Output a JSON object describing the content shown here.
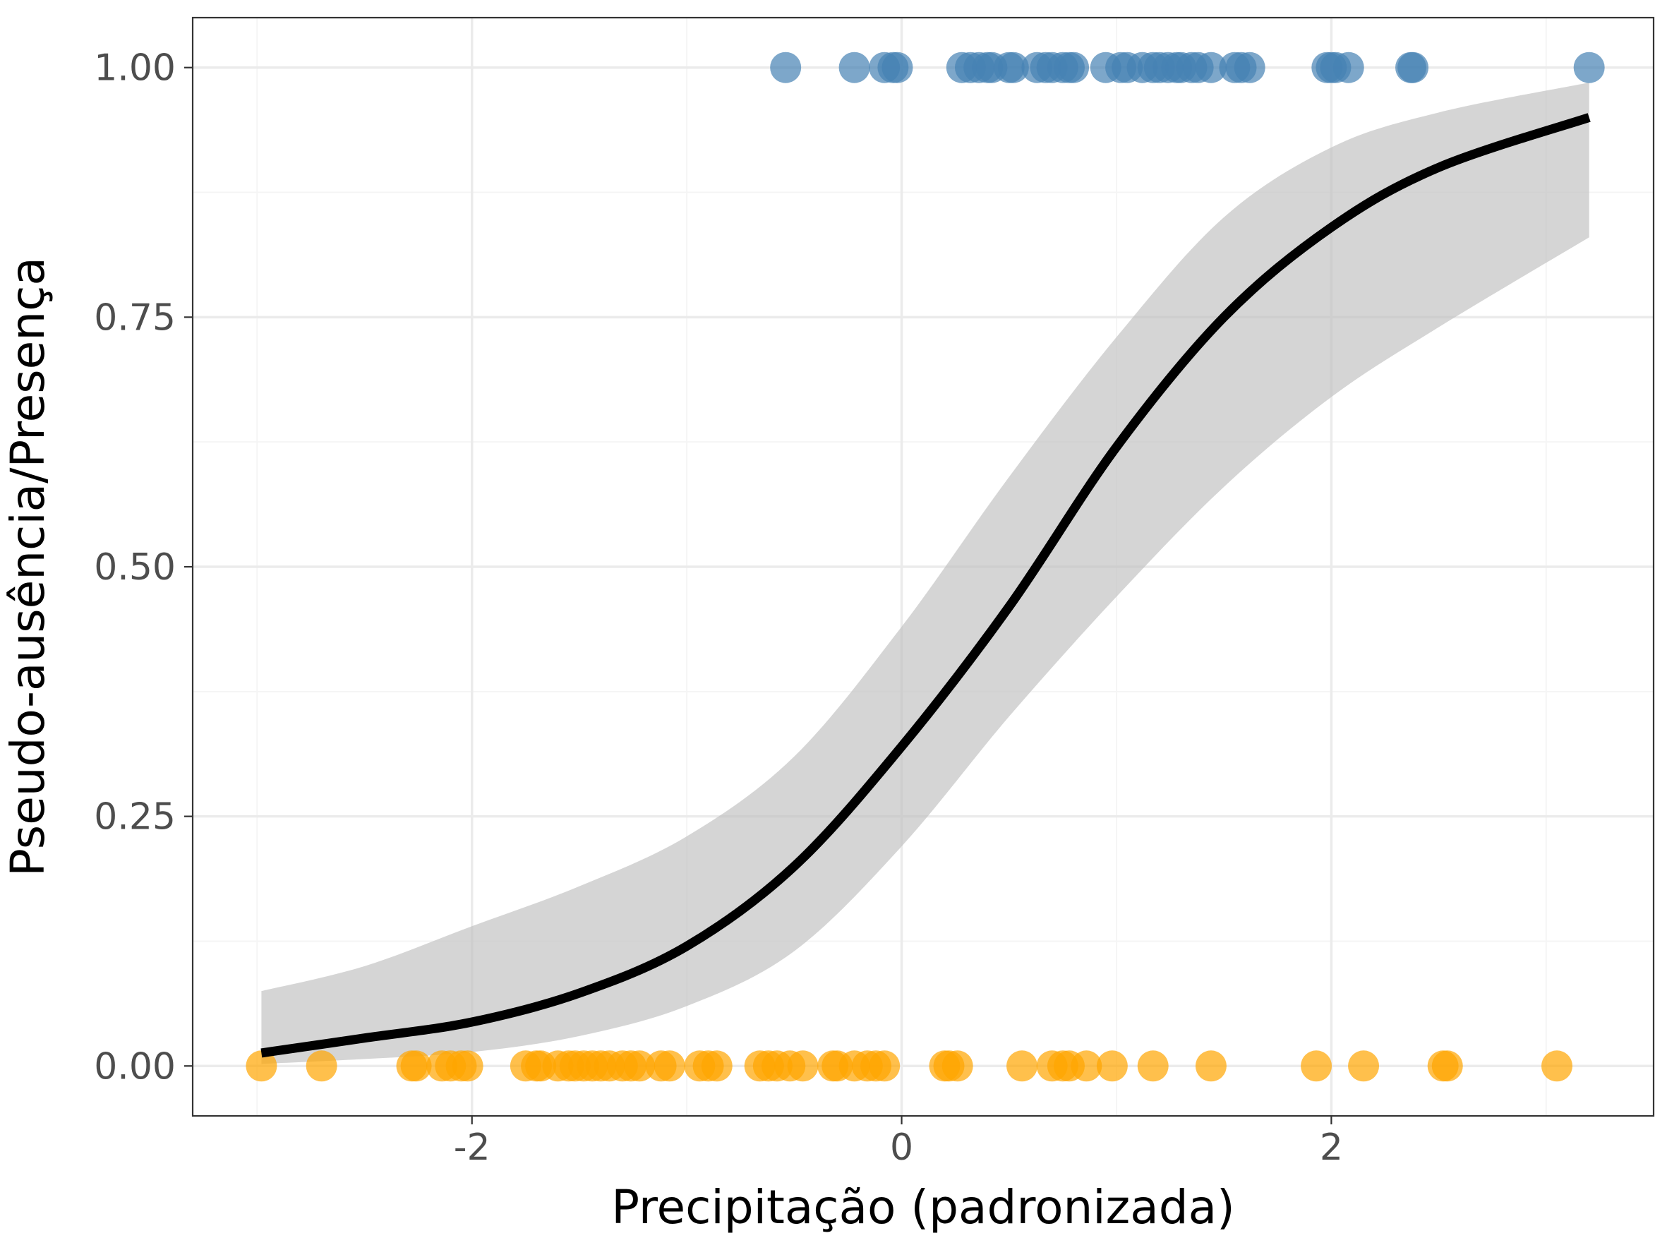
{
  "chart_data": {
    "type": "scatter",
    "xlabel": "Precipitação (padronizada)",
    "ylabel": "Pseudo-ausência/Presença",
    "xlim": [
      -3.3,
      3.5
    ],
    "ylim": [
      -0.05,
      1.05
    ],
    "x_ticks": [
      -2,
      0,
      2
    ],
    "x_tick_labels": [
      "-2",
      "0",
      "2"
    ],
    "y_ticks": [
      0,
      0.25,
      0.5,
      0.75,
      1
    ],
    "y_tick_labels": [
      "0.00",
      "0.25",
      "0.50",
      "0.75",
      "1.00"
    ],
    "grid": true,
    "legend": "none",
    "colors": {
      "presence": "#4682b4",
      "absence": "#ffa500",
      "curve": "#000000",
      "ribbon": "#bebebe",
      "grid_major": "#ebebeb",
      "grid_minor": "#f5f5f5",
      "panel_border": "#333333"
    },
    "series": [
      {
        "kind": "points",
        "y": 1,
        "x": [
          -0.54,
          -0.22,
          -0.08,
          -0.04,
          -0.02,
          0.28,
          0.32,
          0.36,
          0.4,
          0.42,
          0.5,
          0.52,
          0.63,
          0.67,
          0.7,
          0.75,
          0.78,
          0.8,
          0.95,
          1.02,
          1.05,
          1.12,
          1.17,
          1.2,
          1.24,
          1.28,
          1.3,
          1.35,
          1.38,
          1.44,
          1.55,
          1.58,
          1.62,
          1.98,
          2.0,
          2.02,
          2.08,
          2.37,
          2.38,
          3.2
        ]
      },
      {
        "kind": "points",
        "y": 0,
        "x": [
          -2.98,
          -2.7,
          -2.28,
          -2.26,
          -2.14,
          -2.1,
          -2.05,
          -2.02,
          -1.75,
          -1.7,
          -1.68,
          -1.6,
          -1.55,
          -1.52,
          -1.48,
          -1.44,
          -1.4,
          -1.36,
          -1.3,
          -1.26,
          -1.22,
          -1.12,
          -1.08,
          -0.94,
          -0.9,
          -0.86,
          -0.66,
          -0.62,
          -0.58,
          -0.52,
          -0.46,
          -0.32,
          -0.3,
          -0.22,
          -0.16,
          -0.12,
          -0.08,
          0.2,
          0.22,
          0.26,
          0.56,
          0.7,
          0.75,
          0.78,
          0.86,
          0.98,
          1.17,
          1.44,
          1.93,
          2.15,
          2.52,
          2.54,
          3.05
        ]
      },
      {
        "kind": "curve",
        "x": [
          -2.98,
          -2.5,
          -2.0,
          -1.5,
          -1.0,
          -0.5,
          0.0,
          0.5,
          1.0,
          1.5,
          2.0,
          2.5,
          3.2
        ],
        "y": [
          0.013,
          0.028,
          0.044,
          0.073,
          0.12,
          0.2,
          0.32,
          0.46,
          0.62,
          0.75,
          0.84,
          0.9,
          0.95
        ]
      },
      {
        "kind": "ribbon",
        "x": [
          -2.98,
          -2.5,
          -2.0,
          -1.5,
          -1.0,
          -0.5,
          0.0,
          0.5,
          1.0,
          1.5,
          2.0,
          2.5,
          3.2
        ],
        "lower": [
          0.002,
          0.007,
          0.014,
          0.03,
          0.06,
          0.115,
          0.22,
          0.35,
          0.47,
          0.58,
          0.67,
          0.74,
          0.83
        ],
        "upper": [
          0.075,
          0.1,
          0.14,
          0.18,
          0.23,
          0.31,
          0.44,
          0.59,
          0.73,
          0.85,
          0.92,
          0.955,
          0.985
        ]
      }
    ]
  }
}
